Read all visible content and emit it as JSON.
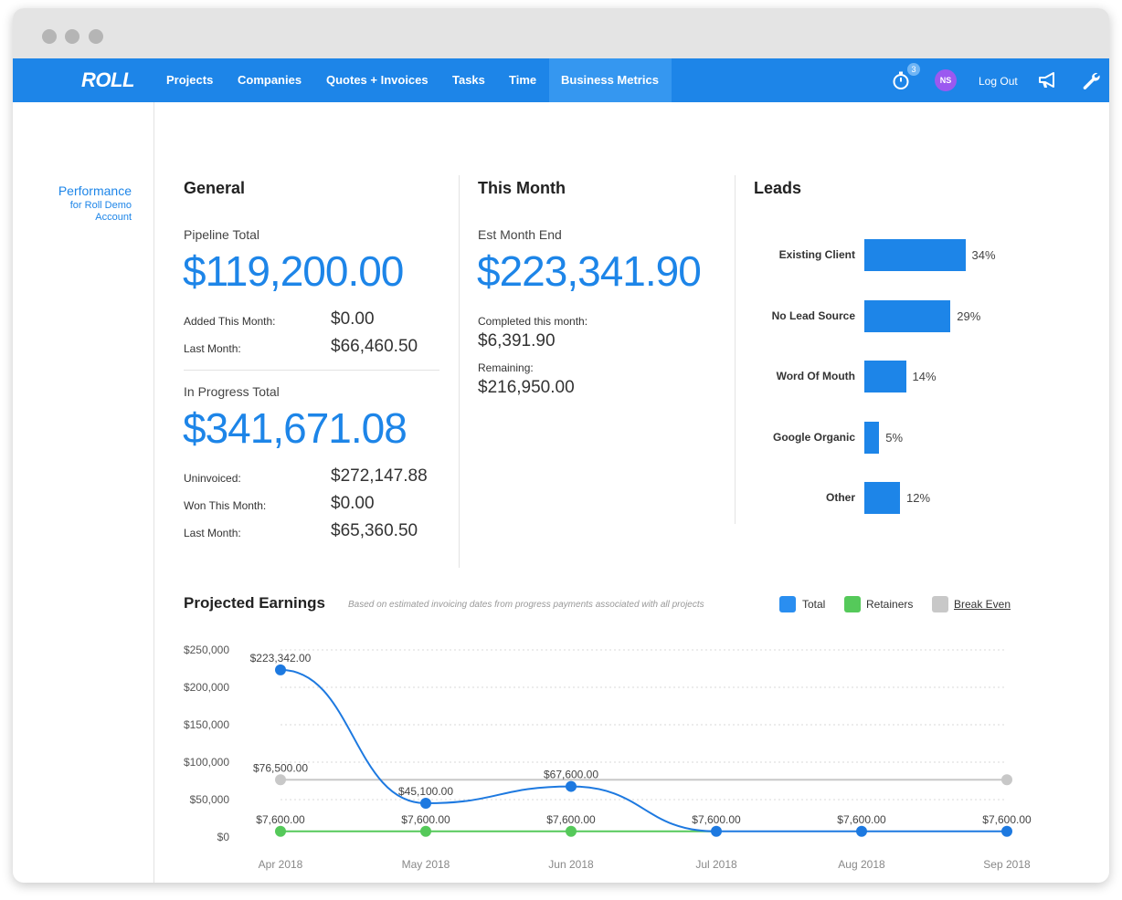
{
  "nav": {
    "logo": "ROLL",
    "items": [
      "Projects",
      "Companies",
      "Quotes + Invoices",
      "Tasks",
      "Time",
      "Business Metrics"
    ],
    "active": "Business Metrics",
    "timer_badge": "3",
    "avatar_initials": "NS",
    "logout": "Log Out",
    "icons": [
      "stopwatch-icon",
      "megaphone-icon",
      "wrench-icon"
    ]
  },
  "sidebar": {
    "title": "Performance",
    "subtitle": "for Roll Demo Account"
  },
  "general": {
    "title": "General",
    "pipeline_label": "Pipeline Total",
    "pipeline_total": "$119,200.00",
    "added_label": "Added This Month:",
    "added_value": "$0.00",
    "last_month_label": "Last Month:",
    "last_month_value": "$66,460.50",
    "inprogress_label": "In Progress Total",
    "inprogress_total": "$341,671.08",
    "uninvoiced_label": "Uninvoiced:",
    "uninvoiced_value": "$272,147.88",
    "won_label": "Won This Month:",
    "won_value": "$0.00",
    "last_month2_label": "Last Month:",
    "last_month2_value": "$65,360.50"
  },
  "this_month": {
    "title": "This Month",
    "est_label": "Est Month End",
    "est_value": "$223,341.90",
    "completed_label": "Completed this month:",
    "completed_value": "$6,391.90",
    "remaining_label": "Remaining:",
    "remaining_value": "$216,950.00"
  },
  "leads": {
    "title": "Leads",
    "items": [
      {
        "label": "Existing Client",
        "pct": 34,
        "pct_text": "34%"
      },
      {
        "label": "No Lead Source",
        "pct": 29,
        "pct_text": "29%"
      },
      {
        "label": "Word Of Mouth",
        "pct": 14,
        "pct_text": "14%"
      },
      {
        "label": "Google Organic",
        "pct": 5,
        "pct_text": "5%"
      },
      {
        "label": "Other",
        "pct": 12,
        "pct_text": "12%"
      }
    ],
    "color": "#1d85e8"
  },
  "projected": {
    "title": "Projected Earnings",
    "note": "Based on estimated invoicing dates from progress payments associated with all projects",
    "legend": [
      {
        "label": "Total",
        "color": "#2a8ef0"
      },
      {
        "label": "Retainers",
        "color": "#55c95a"
      },
      {
        "label": "Break Even",
        "color": "#c8c8c8"
      }
    ]
  },
  "chart_data": {
    "type": "line",
    "x": [
      "Apr 2018",
      "May 2018",
      "Jun 2018",
      "Jul 2018",
      "Aug 2018",
      "Sep 2018"
    ],
    "y_ticks": [
      "$250,000",
      "$200,000",
      "$150,000",
      "$100,000",
      "$50,000",
      "$0"
    ],
    "ylim": [
      0,
      250000
    ],
    "grid": true,
    "legend": "top-right",
    "series": [
      {
        "name": "Total",
        "color": "#1d79e0",
        "values": [
          223342,
          45100,
          67600,
          7600,
          7600,
          7600
        ],
        "labels": [
          "$223,342.00",
          "$45,100.00",
          "$67,600.00",
          "$7,600.00",
          "$7,600.00",
          "$7,600.00"
        ]
      },
      {
        "name": "Retainers",
        "color": "#55c95a",
        "values": [
          7600,
          7600,
          7600,
          7600,
          7600,
          7600
        ],
        "labels": [
          "$7,600.00",
          "$7,600.00",
          "$7,600.00",
          "",
          "",
          ""
        ]
      },
      {
        "name": "Break Even",
        "color": "#c8c8c8",
        "values": [
          76500,
          76500,
          76500,
          76500,
          76500,
          76500
        ],
        "labels": [
          "$76,500.00",
          "",
          "",
          "",
          "",
          ""
        ]
      }
    ]
  }
}
